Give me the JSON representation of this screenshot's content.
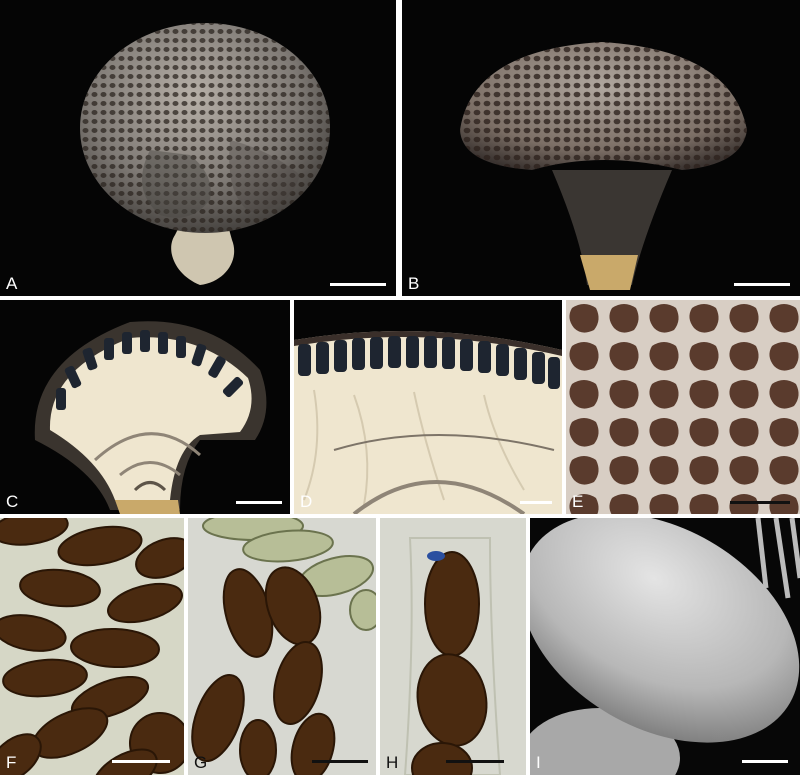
{
  "figure": {
    "panels": [
      {
        "label": "A"
      },
      {
        "label": "B"
      },
      {
        "label": "C"
      },
      {
        "label": "D"
      },
      {
        "label": "E"
      },
      {
        "label": "F"
      },
      {
        "label": "G"
      },
      {
        "label": "H"
      },
      {
        "label": "I"
      }
    ]
  },
  "colors": {
    "background_dark": "#050505",
    "fruitbody_grey": "#a9a39d",
    "cell_dark": "#2c2520",
    "pale_tissue": "#efe6cf",
    "spore_brown": "#4a2a10",
    "light_bg": "#d6d7c6",
    "sem_grey": "#b8b8b8"
  }
}
